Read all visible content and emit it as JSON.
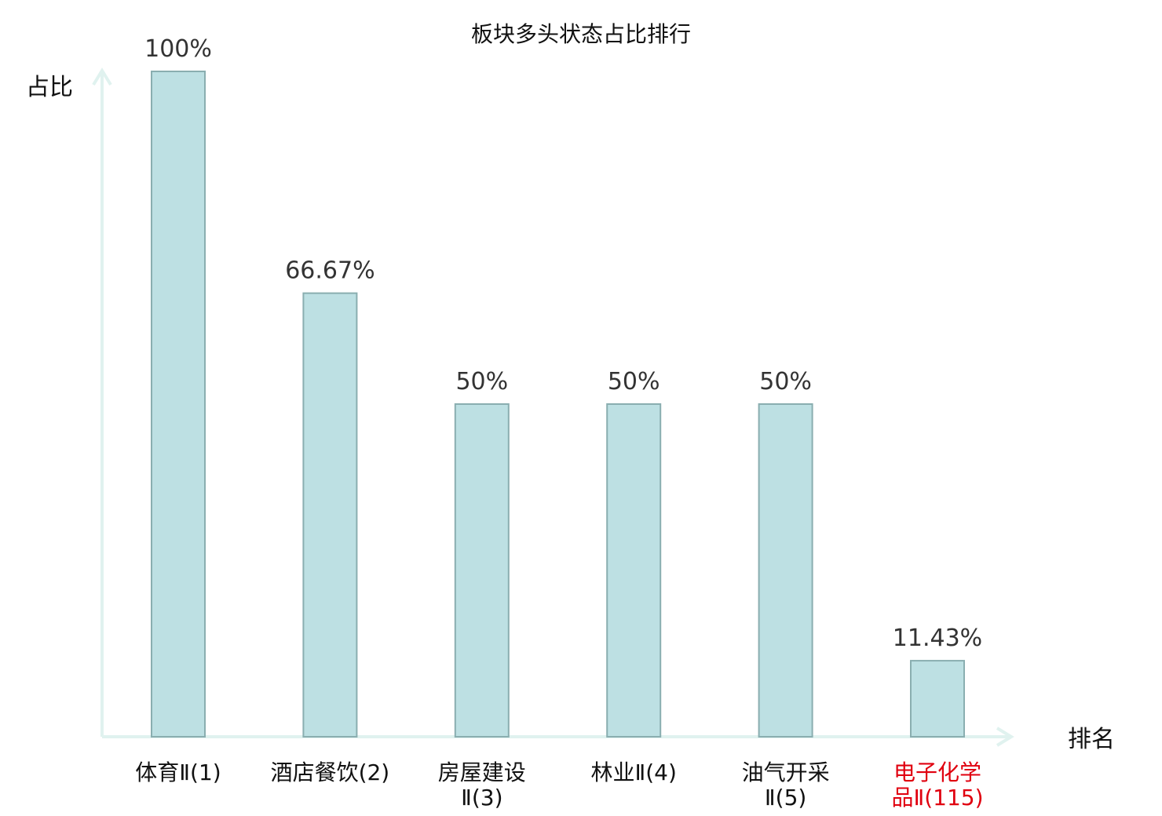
{
  "chart_data": {
    "type": "bar",
    "title": "板块多头状态占比排行",
    "ylabel": "占比",
    "xlabel": "排名",
    "ylim": [
      0,
      100
    ],
    "grid": false,
    "categories": [
      {
        "name": "体育Ⅱ",
        "rank": "(1)",
        "lines": [
          "体育Ⅱ(1)"
        ],
        "highlight": false
      },
      {
        "name": "酒店餐饮",
        "rank": "(2)",
        "lines": [
          "酒店餐饮(2)"
        ],
        "highlight": false
      },
      {
        "name": "房屋建设Ⅱ",
        "rank": "(3)",
        "lines": [
          "房屋建设",
          "Ⅱ(3)"
        ],
        "highlight": false
      },
      {
        "name": "林业Ⅱ",
        "rank": "(4)",
        "lines": [
          "林业Ⅱ(4)"
        ],
        "highlight": false
      },
      {
        "name": "油气开采Ⅱ",
        "rank": "(5)",
        "lines": [
          "油气开采",
          "Ⅱ(5)"
        ],
        "highlight": false
      },
      {
        "name": "电子化学品Ⅱ",
        "rank": "(115)",
        "lines": [
          "电子化学",
          "品Ⅱ(115)"
        ],
        "highlight": true
      }
    ],
    "values": [
      100,
      66.67,
      50,
      50,
      50,
      11.43
    ],
    "value_labels": [
      "100%",
      "66.67%",
      "50%",
      "50%",
      "50%",
      "11.43%"
    ],
    "colors": {
      "bar_fill": "#bde0e3",
      "bar_stroke": "#8aaeb0",
      "axis": "#e0f2ef",
      "label": "#111111",
      "highlight": "#e0000f"
    }
  }
}
